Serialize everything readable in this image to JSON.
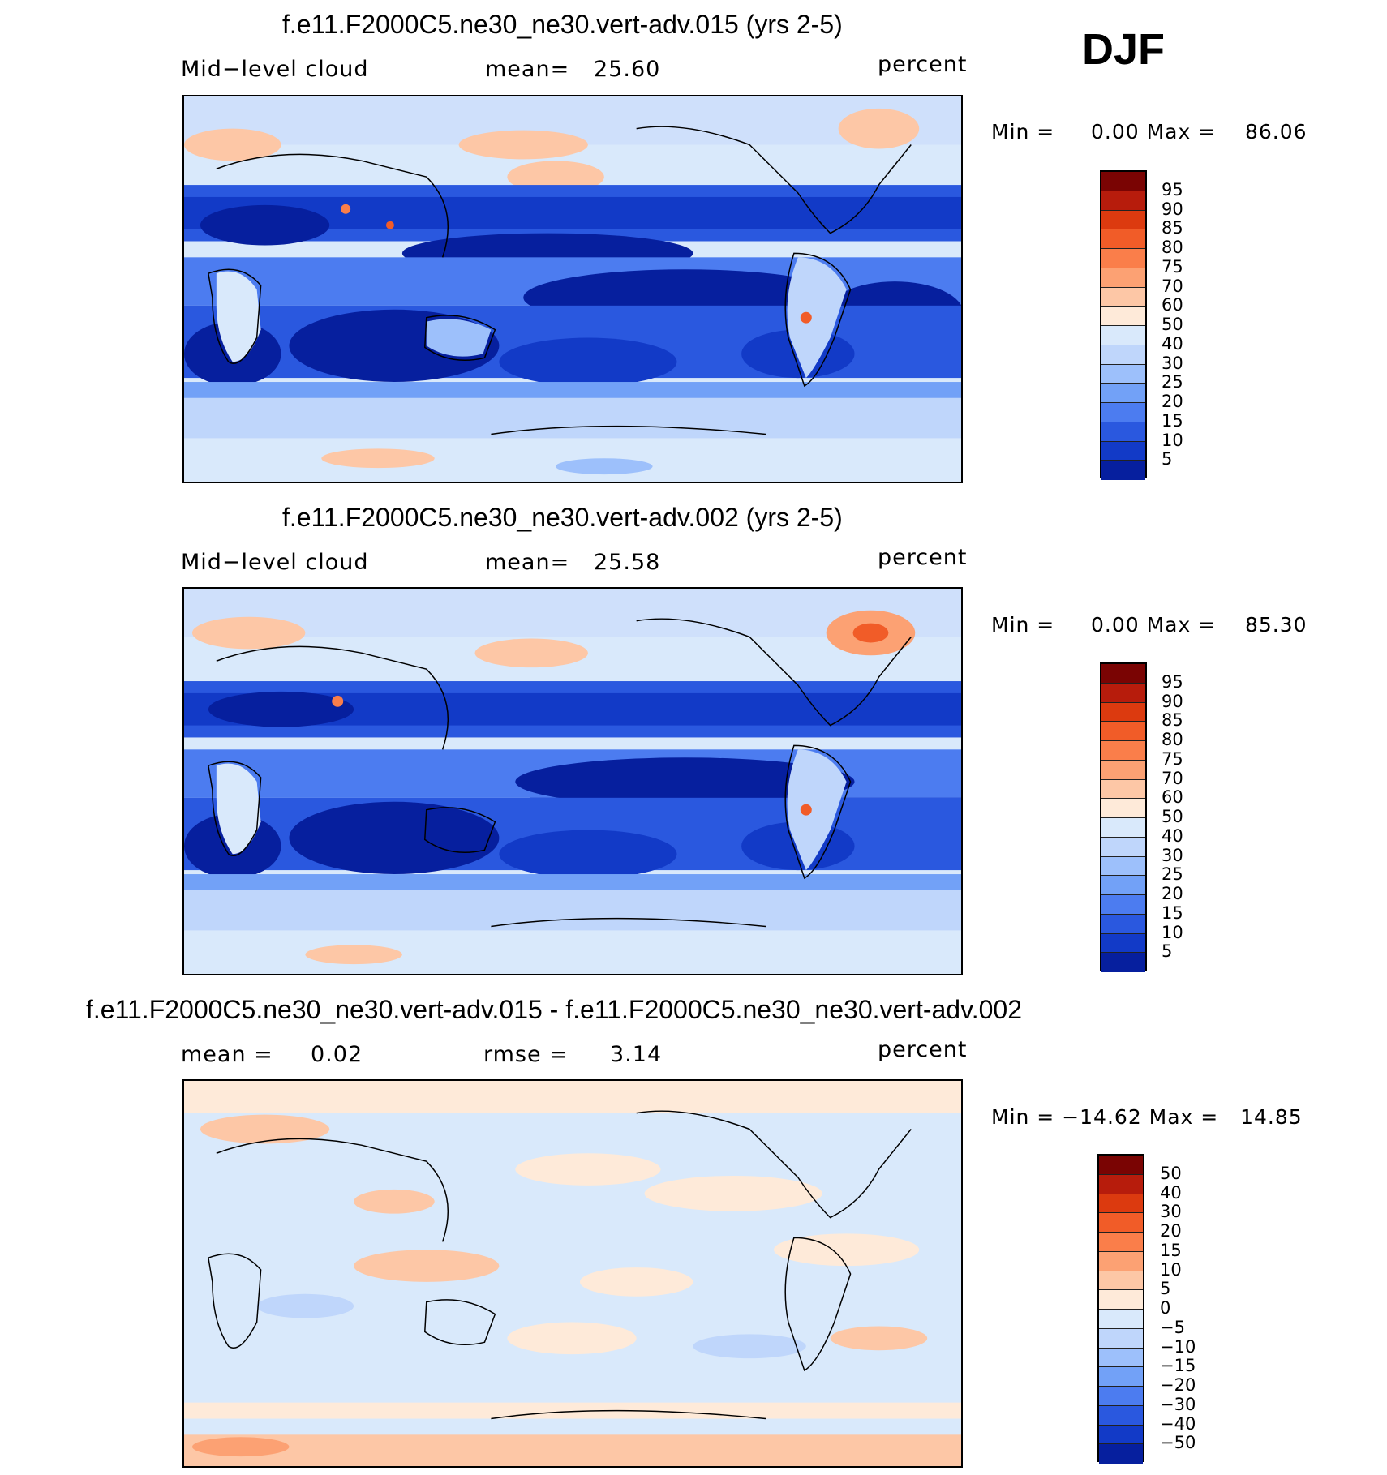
{
  "season": "DJF",
  "panels": [
    {
      "title": "f.e11.F2000C5.ne30_ne30.vert-adv.015 (yrs 2-5)",
      "variable": "Mid−level cloud",
      "stat_label": "mean=",
      "stat_value": "25.60",
      "units": "percent",
      "minmax": "Min =     0.00 Max =    86.06",
      "colorbar_ticks": [
        "95",
        "90",
        "85",
        "80",
        "75",
        "70",
        "60",
        "50",
        "40",
        "30",
        "25",
        "20",
        "15",
        "10",
        "5"
      ]
    },
    {
      "title": "f.e11.F2000C5.ne30_ne30.vert-adv.002 (yrs 2-5)",
      "variable": "Mid−level cloud",
      "stat_label": "mean=",
      "stat_value": "25.58",
      "units": "percent",
      "minmax": "Min =     0.00 Max =    85.30",
      "colorbar_ticks": [
        "95",
        "90",
        "85",
        "80",
        "75",
        "70",
        "60",
        "50",
        "40",
        "30",
        "25",
        "20",
        "15",
        "10",
        "5"
      ]
    },
    {
      "title": "f.e11.F2000C5.ne30_ne30.vert-adv.015 - f.e11.F2000C5.ne30_ne30.vert-adv.002",
      "mean_label": "mean =",
      "mean_value": "0.02",
      "rmse_label": "rmse =",
      "rmse_value": "3.14",
      "units": "percent",
      "minmax": "Min = −14.62 Max =   14.85",
      "colorbar_ticks": [
        "50",
        "40",
        "30",
        "20",
        "15",
        "10",
        "5",
        "0",
        "−5",
        "−10",
        "−15",
        "−20",
        "−30",
        "−40",
        "−50"
      ]
    }
  ],
  "colors": {
    "cloud_scale": [
      "#7a0403",
      "#b71c0c",
      "#dc3a0f",
      "#f15c28",
      "#fa7e4a",
      "#fca173",
      "#fdc7a6",
      "#feead9",
      "#d9e9fb",
      "#bfd6fb",
      "#9dc0fb",
      "#72a1f7",
      "#4c7cf0",
      "#2a58df",
      "#123ac7",
      "#061f9e"
    ],
    "diff_scale": [
      "#7a0403",
      "#b71c0c",
      "#dc3a0f",
      "#f15c28",
      "#fa7e4a",
      "#fca173",
      "#fdc7a6",
      "#feead9",
      "#d9e9fb",
      "#bfd6fb",
      "#9dc0fb",
      "#72a1f7",
      "#4c7cf0",
      "#2a58df",
      "#123ac7",
      "#061f9e"
    ]
  }
}
